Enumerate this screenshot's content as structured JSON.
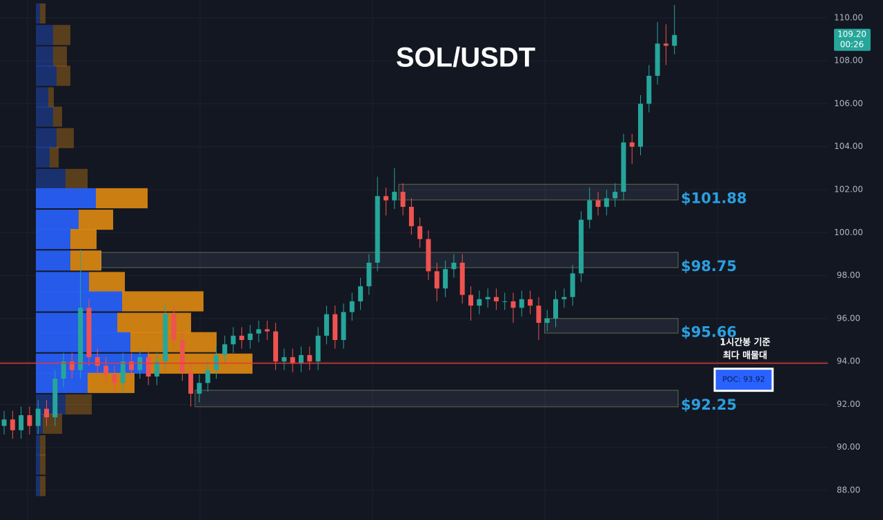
{
  "chart_data": {
    "type": "candlestick",
    "title": "SOL/USDT",
    "up_color": "#26a69a",
    "down_color": "#ef5350",
    "open": [
      91.0,
      91.3,
      90.8,
      91.5,
      91.0,
      91.8,
      91.4,
      93.2,
      94.0,
      93.6,
      96.5,
      94.2,
      93.8,
      93.4,
      93.0,
      94.0,
      93.6,
      94.2,
      93.3,
      94.0,
      96.2,
      95.0,
      93.5,
      92.5,
      93.0,
      93.6,
      94.3,
      94.8,
      95.2,
      95.0,
      95.3,
      95.5,
      95.4,
      94.0,
      94.2,
      93.9,
      94.3,
      94.0,
      95.2,
      96.2,
      95.0,
      96.3,
      96.8,
      97.5,
      98.6,
      101.7,
      101.5,
      101.9,
      101.2,
      100.3,
      99.7,
      98.2,
      97.4,
      98.3,
      98.6,
      97.1,
      96.6,
      96.9,
      97.0,
      96.8,
      96.8,
      96.5,
      96.9,
      96.6,
      95.8,
      96.0,
      96.9,
      97.0,
      98.1,
      100.6,
      101.5,
      101.2,
      101.6,
      101.9,
      104.2,
      104.0,
      106.0,
      107.3,
      108.8,
      108.7
    ],
    "high": [
      91.7,
      91.7,
      91.9,
      91.9,
      92.2,
      92.2,
      93.6,
      94.4,
      94.4,
      99.2,
      96.9,
      94.6,
      94.2,
      93.8,
      94.4,
      94.4,
      94.6,
      94.6,
      94.4,
      96.7,
      96.6,
      95.4,
      93.9,
      93.4,
      94.0,
      94.7,
      95.2,
      95.6,
      95.6,
      95.7,
      95.9,
      95.9,
      95.8,
      94.6,
      94.6,
      94.7,
      94.7,
      95.6,
      96.6,
      96.6,
      96.7,
      97.2,
      97.9,
      99.0,
      102.6,
      102.1,
      103.0,
      102.3,
      101.6,
      100.7,
      100.1,
      98.6,
      98.7,
      99.0,
      99.0,
      97.5,
      97.3,
      97.4,
      97.4,
      97.2,
      97.2,
      97.3,
      97.3,
      97.0,
      96.4,
      97.3,
      97.4,
      98.5,
      101.0,
      102.1,
      101.9,
      102.0,
      102.3,
      104.6,
      104.6,
      106.4,
      107.8,
      109.8,
      109.7,
      110.6
    ],
    "low": [
      90.6,
      90.4,
      90.4,
      90.6,
      90.6,
      91.0,
      91.0,
      92.8,
      93.2,
      93.2,
      93.8,
      93.4,
      93.0,
      92.6,
      92.6,
      93.2,
      93.2,
      92.9,
      92.9,
      93.6,
      94.6,
      93.1,
      91.9,
      92.1,
      92.6,
      93.2,
      93.9,
      94.4,
      94.6,
      94.6,
      94.9,
      95.0,
      93.6,
      93.6,
      93.5,
      93.5,
      93.6,
      93.6,
      94.8,
      94.6,
      94.6,
      95.9,
      96.4,
      97.1,
      98.2,
      100.8,
      101.1,
      100.8,
      99.9,
      99.3,
      97.8,
      96.8,
      97.0,
      97.9,
      96.7,
      95.9,
      96.2,
      96.5,
      96.4,
      96.4,
      95.8,
      96.1,
      96.2,
      95.0,
      95.4,
      95.6,
      96.5,
      96.6,
      97.7,
      100.2,
      100.8,
      100.8,
      101.2,
      101.5,
      103.2,
      103.6,
      105.6,
      106.9,
      107.8,
      108.3
    ],
    "close": [
      91.3,
      90.8,
      91.5,
      91.0,
      91.8,
      91.4,
      93.2,
      94.0,
      93.6,
      96.5,
      94.2,
      93.8,
      93.4,
      93.0,
      94.0,
      93.6,
      94.2,
      93.3,
      94.0,
      96.2,
      95.0,
      93.5,
      92.5,
      93.0,
      93.6,
      94.3,
      94.8,
      95.2,
      95.0,
      95.3,
      95.5,
      95.4,
      94.0,
      94.2,
      93.9,
      94.3,
      94.0,
      95.2,
      96.2,
      95.0,
      96.3,
      96.8,
      97.5,
      98.6,
      101.7,
      101.5,
      101.9,
      101.2,
      100.3,
      99.7,
      98.2,
      97.4,
      98.3,
      98.6,
      97.1,
      96.6,
      96.9,
      97.0,
      96.8,
      96.8,
      96.5,
      96.9,
      96.6,
      95.8,
      96.0,
      96.9,
      97.0,
      98.1,
      100.6,
      101.5,
      101.2,
      101.6,
      101.9,
      104.2,
      104.0,
      106.0,
      107.3,
      108.8,
      108.7,
      109.2
    ],
    "ylim": [
      86.62,
      110.83
    ],
    "yticks": [
      {
        "value": 88,
        "label": "88.00"
      },
      {
        "value": 90,
        "label": "90.00"
      },
      {
        "value": 92,
        "label": "92.00"
      },
      {
        "value": 94,
        "label": "94.00"
      },
      {
        "value": 96,
        "label": "96.00"
      },
      {
        "value": 98,
        "label": "98.00"
      },
      {
        "value": 100,
        "label": "100.00"
      },
      {
        "value": 102,
        "label": "102.00"
      },
      {
        "value": 104,
        "label": "104.00"
      },
      {
        "value": 106,
        "label": "106.00"
      },
      {
        "value": 108,
        "label": "108.00"
      },
      {
        "value": 110,
        "label": "110.00"
      }
    ],
    "grid": true,
    "volume_profile": {
      "levels": [
        110.2,
        109.2,
        108.2,
        107.3,
        106.3,
        105.4,
        104.4,
        103.5,
        102.5,
        101.6,
        100.6,
        99.7,
        98.7,
        97.7,
        96.8,
        95.8,
        94.9,
        93.9,
        93.0,
        92.0,
        91.1,
        90.1,
        89.2,
        88.2
      ],
      "buy": [
        6,
        25,
        25,
        30,
        18,
        25,
        30,
        20,
        43,
        87,
        62,
        50,
        50,
        77,
        125,
        118,
        137,
        162,
        75,
        43,
        10,
        6,
        6,
        6
      ],
      "sell": [
        8,
        25,
        20,
        20,
        8,
        13,
        25,
        13,
        32,
        75,
        50,
        38,
        45,
        52,
        118,
        107,
        125,
        152,
        68,
        38,
        28,
        8,
        8,
        8
      ],
      "buy_color": "#2962ff",
      "sell_color": "#e08a10"
    },
    "zones": [
      {
        "label": "$101.88",
        "top": 102.25,
        "bottom": 101.52,
        "start": 46.5
      },
      {
        "label": "$98.75",
        "top": 99.08,
        "bottom": 98.37,
        "start": 11.4
      },
      {
        "label": "$95.66",
        "top": 96.0,
        "bottom": 95.32,
        "start": 63.7
      },
      {
        "label": "$92.25",
        "top": 92.66,
        "bottom": 91.89,
        "start": 22.5
      }
    ],
    "poc": {
      "value": 93.92,
      "label": "POC: 93.92",
      "color": "#e53935"
    },
    "annotation": [
      "1시간봉 기준",
      "최다 매물대"
    ],
    "last_price": {
      "value": 109.2,
      "label": "109.20",
      "countdown": "00:26"
    }
  }
}
